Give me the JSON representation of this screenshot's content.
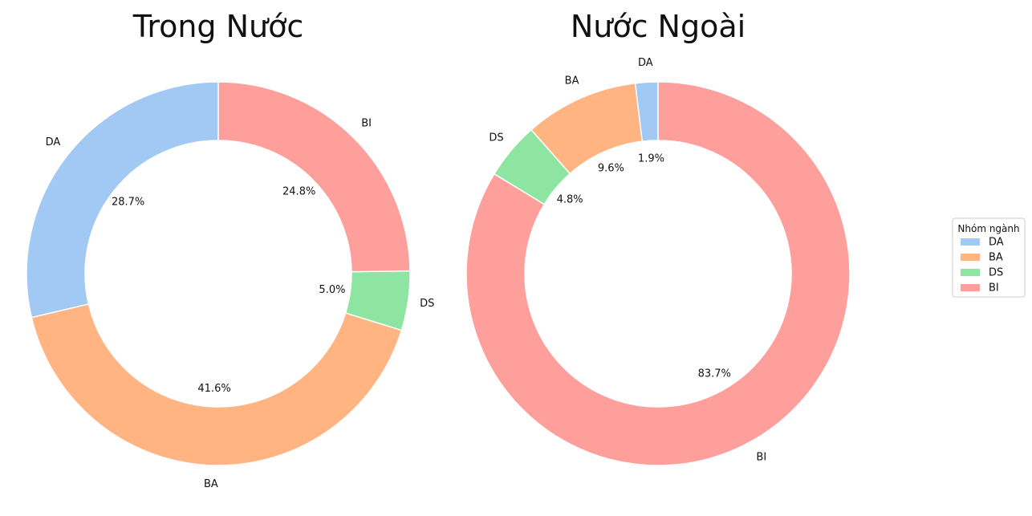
{
  "chart_data": [
    {
      "type": "pie",
      "donut": true,
      "title": "Trong Nước",
      "start_angle": 90,
      "direction": "counterclockwise",
      "slices": [
        {
          "label": "DA",
          "value": 28.7,
          "pct_text": "28.7%",
          "color": "#a1c9f4"
        },
        {
          "label": "BA",
          "value": 41.6,
          "pct_text": "41.6%",
          "color": "#ffb482"
        },
        {
          "label": "DS",
          "value": 5.0,
          "pct_text": "5.0%",
          "color": "#8de5a1"
        },
        {
          "label": "BI",
          "value": 24.8,
          "pct_text": "24.8%",
          "color": "#ff9f9b"
        }
      ]
    },
    {
      "type": "pie",
      "donut": true,
      "title": "Nước Ngoài",
      "start_angle": 90,
      "direction": "counterclockwise",
      "slices": [
        {
          "label": "DA",
          "value": 1.9,
          "pct_text": "1.9%",
          "color": "#a1c9f4"
        },
        {
          "label": "BA",
          "value": 9.6,
          "pct_text": "9.6%",
          "color": "#ffb482"
        },
        {
          "label": "DS",
          "value": 4.8,
          "pct_text": "4.8%",
          "color": "#8de5a1"
        },
        {
          "label": "BI",
          "value": 83.7,
          "pct_text": "83.7%",
          "color": "#ff9f9b"
        }
      ]
    }
  ],
  "legend": {
    "title": "Nhóm ngành",
    "placement": "right",
    "items": [
      {
        "label": "DA",
        "color": "#a1c9f4"
      },
      {
        "label": "BA",
        "color": "#ffb482"
      },
      {
        "label": "DS",
        "color": "#8de5a1"
      },
      {
        "label": "BI",
        "color": "#ff9f9b"
      }
    ]
  }
}
